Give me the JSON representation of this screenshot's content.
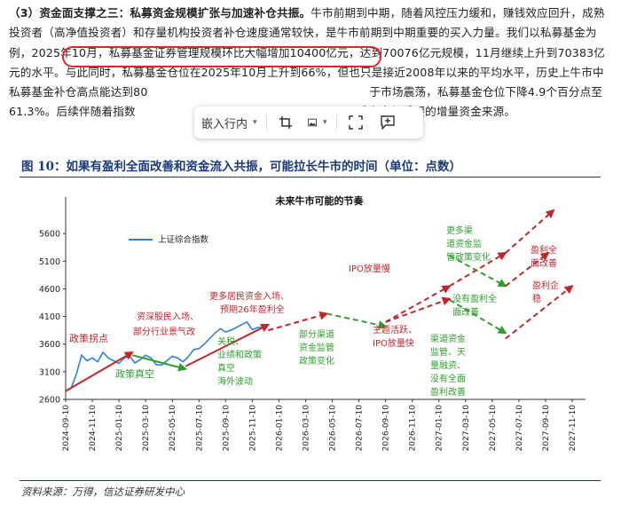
{
  "paragraph": {
    "heading": "（3）资金面支撑之三：私募资金规模扩张与加速补仓共振。",
    "text_1": "牛市前期到中期，随着风控压力缓和，赚钱效应回升，成熟投资者（高净值投资者）和存量机构投资者补仓速度通常较快，是牛市前期到中期重要的买入力量。我们以私募基金为例，",
    "highlight": "2025年10月，私募基金证券管理规模环比大幅增加10400亿元",
    "text_2": "，达到70076亿元规模，11月继续上升到70383亿元的水平。与此同时，私募基金仓位在2025年10月上升到66%，但也只是接近2008年以来的平均水平，历史上牛市中私募基金补仓高点能达到80",
    "text_3": "于市场震荡，私募基金仓位下降4.9个百分点至61.3%。后续伴随着指数",
    "text_4": "成为市场重要的增量资金来源。"
  },
  "toolbar": {
    "embed_label": "嵌入行内",
    "icons": [
      "crop-icon",
      "image-icon",
      "expand-icon",
      "comment-icon"
    ]
  },
  "figure": {
    "title": "图 10：如果有盈利全面改善和资金流入共振，可能拉长牛市的时间（单位：点数）",
    "source": "资料来源：万得，信达证券研发中心"
  },
  "chart_data": {
    "type": "line",
    "title": "未来牛市可能的节奏",
    "legend": "上证综合指数",
    "legend_position": "top-left",
    "ylim": [
      2600,
      6100
    ],
    "y_ticks": [
      2600,
      3100,
      3600,
      4100,
      4600,
      5100,
      5600
    ],
    "x_ticks": [
      "2024-09-10",
      "2024-11-10",
      "2025-01-10",
      "2025-03-10",
      "2025-05-10",
      "2025-07-10",
      "2025-09-10",
      "2025-11-10",
      "2026-01-10",
      "2026-03-10",
      "2026-05-10",
      "2026-07-10",
      "2026-09-10",
      "2026-11-10",
      "2027-01-10",
      "2027-03-10",
      "2027-05-10",
      "2027-07-10",
      "2027-09-10",
      "2027-11-10"
    ],
    "index_series": {
      "name": "上证综合指数",
      "x": [
        0,
        0.2,
        0.4,
        0.6,
        0.8,
        1.0,
        1.2,
        1.4,
        1.6,
        1.8,
        2.0,
        2.2,
        2.4,
        2.6,
        2.8,
        3.0,
        3.2,
        3.4,
        3.6,
        3.8,
        4.0,
        4.2,
        4.4,
        4.6,
        4.8,
        5.0,
        5.2,
        5.4,
        5.6,
        5.8,
        6.0,
        6.2,
        6.4,
        6.6,
        6.8,
        7.0,
        7.2,
        7.4
      ],
      "y": [
        2750,
        2800,
        3050,
        3400,
        3300,
        3350,
        3280,
        3450,
        3350,
        3300,
        3250,
        3350,
        3380,
        3260,
        3320,
        3400,
        3350,
        3230,
        3220,
        3300,
        3380,
        3350,
        3280,
        3370,
        3500,
        3520,
        3600,
        3700,
        3800,
        3880,
        3820,
        3850,
        3900,
        3950,
        4000,
        3860,
        3900,
        3900
      ]
    },
    "annotations": [
      {
        "text": "政策拐点",
        "color": "#c0272d"
      },
      {
        "text": "政策真空",
        "color": "#2e9e2e"
      },
      {
        "text": "资深股民入场、",
        "color": "#c0272d"
      },
      {
        "text": "部分行业景气改",
        "color": "#c0272d"
      },
      {
        "text": "关税、",
        "color": "#2e9e2e"
      },
      {
        "text": "业绩和政策",
        "color": "#2e9e2e"
      },
      {
        "text": "真空",
        "color": "#2e9e2e"
      },
      {
        "text": "海外波动",
        "color": "#2e9e2e"
      },
      {
        "text": "更多居民资金入场、",
        "color": "#c0272d"
      },
      {
        "text": "预期26年盈利全",
        "color": "#c0272d"
      },
      {
        "text": "部分渠道",
        "color": "#2e9e2e"
      },
      {
        "text": "资金监管",
        "color": "#2e9e2e"
      },
      {
        "text": "政策变化",
        "color": "#2e9e2e"
      },
      {
        "text": "IPO放量慢",
        "color": "#c0272d"
      },
      {
        "text": "主题活跃、",
        "color": "#c0272d"
      },
      {
        "text": "IPO放量快",
        "color": "#c0272d"
      },
      {
        "text": "更多渠",
        "color": "#2e9e2e"
      },
      {
        "text": "道资金监",
        "color": "#2e9e2e"
      },
      {
        "text": "管政策变化",
        "color": "#2e9e2e"
      },
      {
        "text": "盈利全",
        "color": "#c0272d"
      },
      {
        "text": "面改善",
        "color": "#c0272d"
      },
      {
        "text": "没有盈利全",
        "color": "#2e9e2e"
      },
      {
        "text": "面改善",
        "color": "#2e9e2e"
      },
      {
        "text": "盈利企",
        "color": "#c0272d"
      },
      {
        "text": "稳",
        "color": "#c0272d"
      },
      {
        "text": "渠道资金",
        "color": "#2e9e2e"
      },
      {
        "text": "监管、天",
        "color": "#2e9e2e"
      },
      {
        "text": "量融资、",
        "color": "#2e9e2e"
      },
      {
        "text": "没有全面",
        "color": "#2e9e2e"
      },
      {
        "text": "盈利改善",
        "color": "#2e9e2e"
      }
    ],
    "colors": {
      "index": "#2f7fd6",
      "up": "#c0272d",
      "down": "#2e9e2e"
    }
  }
}
